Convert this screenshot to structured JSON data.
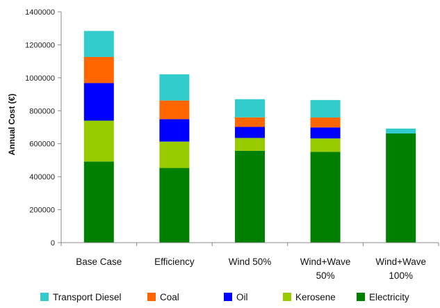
{
  "chart_data": {
    "type": "bar",
    "stacked": true,
    "ylabel": "Annual Cost (€)",
    "xlabel": "",
    "ylim": [
      0,
      1400000
    ],
    "yticks": [
      "0",
      "200000",
      "400000",
      "600000",
      "800000",
      "1000000",
      "1200000",
      "1400000"
    ],
    "grid": false,
    "legend_position": "bottom",
    "categories": [
      [
        "Base Case"
      ],
      [
        "Efficiency"
      ],
      [
        "Wind 50%"
      ],
      [
        "Wind+Wave",
        "50%"
      ],
      [
        "Wind+Wave",
        "100%"
      ]
    ],
    "series": [
      {
        "name": "Electricity",
        "color": "#008000",
        "values": [
          492000,
          453000,
          557000,
          551000,
          662000
        ]
      },
      {
        "name": "Kerosene",
        "color": "#99cc00",
        "values": [
          248000,
          160000,
          78000,
          81000,
          0
        ]
      },
      {
        "name": "Oil",
        "color": "#0000ff",
        "values": [
          228000,
          136000,
          67000,
          67000,
          0
        ]
      },
      {
        "name": "Coal",
        "color": "#ff6600",
        "values": [
          158000,
          113000,
          58000,
          60000,
          0
        ]
      },
      {
        "name": "Transport Diesel",
        "color": "#33cccc",
        "values": [
          158000,
          159000,
          110000,
          106000,
          30000
        ]
      }
    ],
    "legend_order": [
      "Transport Diesel",
      "Coal",
      "Oil",
      "Kerosene",
      "Electricity"
    ]
  }
}
